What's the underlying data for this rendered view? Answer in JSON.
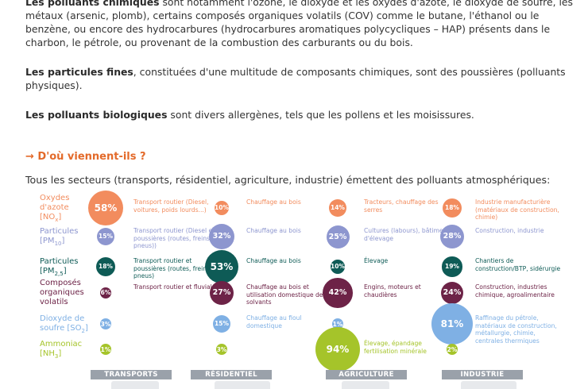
{
  "paragraphs": [
    {
      "bold": "Les polluants chimiques",
      "text": " sont notamment l'ozone, le dioxyde et les oxydes d'azote, le dioxyde de soufre, les métaux (arsenic, plomb), certains composés organiques volatils (COV) comme le butane, l'éthanol ou le benzène, ou encore des hydrocarbures (hydrocarbures aromatiques polycycliques – HAP) présents dans le charbon, le pétrole, ou provenant de la combustion des carburants ou du bois."
    },
    {
      "bold": "Les particules fines",
      "text": ", constituées d'une multitude de composants chimiques, sont des poussières (polluants physiques)."
    },
    {
      "bold": "Les polluants biologiques",
      "text": " sont divers allergènes, tels que les pollens et les moisissures."
    }
  ],
  "heading": "→ D'où viennent-ils ?",
  "intro": "Tous les secteurs (transports, résidentiel, agriculture, industrie) émettent des polluants atmosphériques:",
  "sectors": [
    "TRANSPORTS",
    "RÉSIDENTIEL",
    "AGRICULTURE",
    "INDUSTRIE"
  ],
  "rows": [
    {
      "label_html": "Oxydes<br>d'azote<br>[NO<sub>x</sub>]",
      "color": "#f28c5e",
      "fg": "#ffffff",
      "values": [
        "58%",
        "10%",
        "14%",
        "18%"
      ],
      "fractions": [
        0.58,
        0.1,
        0.14,
        0.18
      ],
      "sources": [
        "Transport routier (Diesel, voitures, poids lourds...)",
        "Chauffage au bois",
        "Tracteurs, chauffage des serres",
        "Industrie manufacturière (matériaux de construction, chimie)"
      ]
    },
    {
      "label_html": "Particules<br>[PM<sub>10</sub>]",
      "color": "#8d96cf",
      "fg": "#ffffff",
      "values": [
        "15%",
        "32%",
        "25%",
        "28%"
      ],
      "fractions": [
        0.15,
        0.32,
        0.25,
        0.28
      ],
      "sources": [
        "Transport routier (Diesel et poussières (routes, freins, pneus))",
        "Chauffage au bois",
        "Cultures (labours), bâtiments d'élevage",
        "Construction, industrie"
      ]
    },
    {
      "label_html": "Particules<br>[PM<sub>2,5</sub>]",
      "color": "#0e5b56",
      "fg": "#ffffff",
      "values": [
        "18%",
        "53%",
        "10%",
        "19%"
      ],
      "fractions": [
        0.18,
        0.53,
        0.1,
        0.19
      ],
      "sources": [
        "Transport routier et poussières (routes, freins, pneus)",
        "Chauffage au bois",
        "Élevage",
        "Chantiers de construction/BTP, sidérurgie"
      ]
    },
    {
      "label_html": "Composés<br>organiques<br>volatils",
      "color": "#6d2347",
      "fg": "#ffffff",
      "values": [
        "6%",
        "27%",
        "42%",
        "24%"
      ],
      "fractions": [
        0.06,
        0.27,
        0.42,
        0.24
      ],
      "sources": [
        "Transport routier et fluvial",
        "Chauffage au bois et utilisation domestique de solvants",
        "Engins, moteurs et chaudières",
        "Construction, industries chimique, agroalimentaire"
      ]
    },
    {
      "label_html": "Dioxyde de<br>soufre [SO<sub>2</sub>]",
      "color": "#7fb0e4",
      "fg": "#ffffff",
      "values": [
        "3%",
        "15%",
        "1%",
        "81%"
      ],
      "fractions": [
        0.03,
        0.15,
        0.01,
        0.81
      ],
      "sources": [
        "",
        "Chauffage au fioul domestique",
        "",
        "Raffinage du pétrole, matériaux de construction, métallurgie, chimie, centrales thermiques"
      ]
    },
    {
      "label_html": "Ammoniac<br>[NH<sub>3</sub>]",
      "color": "#a5c42a",
      "fg": "#ffffff",
      "values": [
        "1%",
        "3%",
        "94%",
        "2%"
      ],
      "fractions": [
        0.01,
        0.03,
        0.94,
        0.02
      ],
      "sources": [
        "",
        "",
        "Élevage, épandage fertilisation minérale",
        ""
      ]
    }
  ]
}
